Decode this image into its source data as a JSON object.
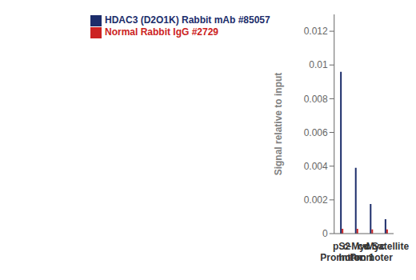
{
  "chart_data": {
    "type": "bar",
    "categories": [
      "pS2\nPromoter",
      "c-Myc\nIntron 1",
      "c-Myc\nPromoter",
      "α Satellite"
    ],
    "series": [
      {
        "name": "HDAC3 (D2O1K) Rabbit mAb #85057",
        "color": "#1c2d6b",
        "values": [
          0.0096,
          0.0039,
          0.00175,
          0.00085
        ]
      },
      {
        "name": "Normal Rabbit IgG #2729",
        "color": "#cc2222",
        "values": [
          0.00028,
          0.00028,
          0.00025,
          0.00025
        ]
      }
    ],
    "ylabel": "Signal relative to input",
    "ylim": [
      0,
      0.013
    ],
    "yticks": [
      0,
      0.002,
      0.004,
      0.006,
      0.008,
      0.01,
      0.012
    ],
    "grid": false,
    "legend": "top"
  }
}
